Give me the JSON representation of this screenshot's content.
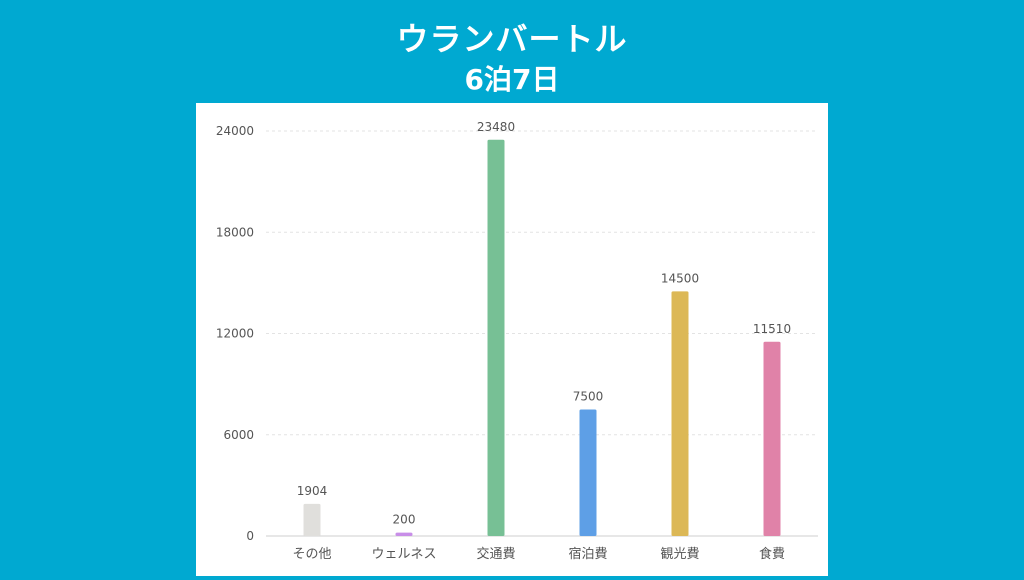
{
  "header": {
    "title": "ウランバートル",
    "subtitle": "6泊7日"
  },
  "chart_data": {
    "type": "bar",
    "categories": [
      "その他",
      "ウェルネス",
      "交通費",
      "宿泊費",
      "観光費",
      "食費"
    ],
    "values": [
      1904,
      200,
      23480,
      7500,
      14500,
      11510
    ],
    "value_labels": [
      "1904",
      "200",
      "23480",
      "7500",
      "14500",
      "11510"
    ],
    "colors": [
      "#e0dfdc",
      "#c88ee8",
      "#77c095",
      "#5e9fe6",
      "#dcb856",
      "#e082a8"
    ],
    "ylim": [
      0,
      24000
    ],
    "yticks": [
      0,
      6000,
      12000,
      18000,
      24000
    ],
    "ytick_labels": [
      "0",
      "6000",
      "12000",
      "18000",
      "24000"
    ],
    "grid": true,
    "legend": "none"
  }
}
